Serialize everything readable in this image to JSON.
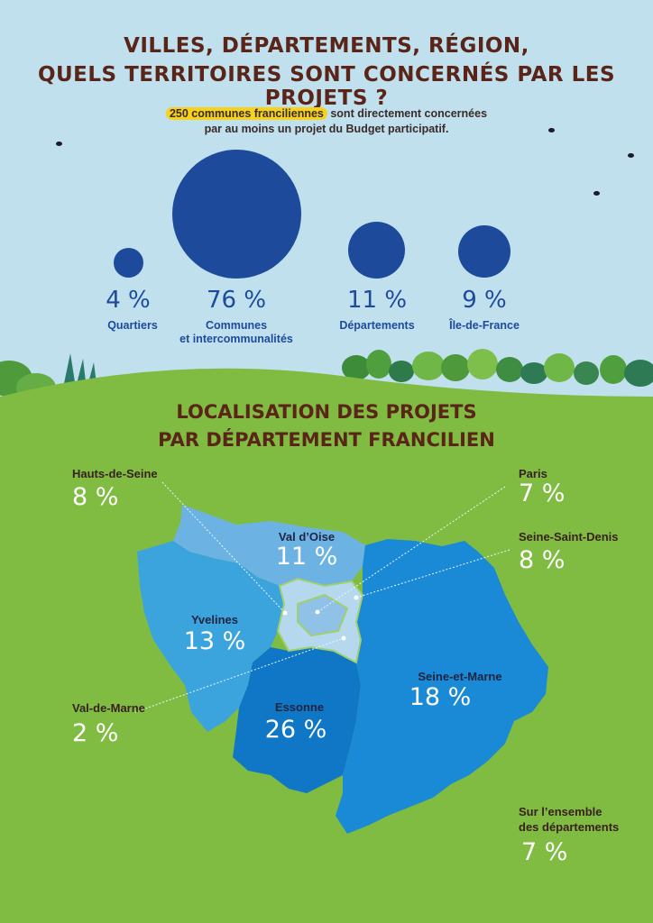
{
  "header": {
    "title_line1": "VILLES, DÉPARTEMENTS, RÉGION,",
    "title_line2": "QUELS TERRITOIRES SONT CONCERNÉS PAR LES PROJETS ?",
    "intro_highlight": "250 communes franciliennes",
    "intro_rest": " sont directement concernées",
    "intro_line2": "par au moins un projet du Budget participatif."
  },
  "territories": [
    {
      "percent": "4 %",
      "label": "Quartiers",
      "value": 4
    },
    {
      "percent": "76 %",
      "label": "Communes",
      "label2": "et intercommunalités",
      "value": 76
    },
    {
      "percent": "11 %",
      "label": "Départements",
      "value": 11
    },
    {
      "percent": "9 %",
      "label": "Île-de-France",
      "value": 9
    }
  ],
  "localisation": {
    "title_line1": "LOCALISATION DES PROJETS",
    "title_line2": "PAR DÉPARTEMENT FRANCILIEN"
  },
  "departments": {
    "hauts_de_seine": {
      "label": "Hauts-de-Seine",
      "percent": "8 %"
    },
    "paris": {
      "label": "Paris",
      "percent": "7 %"
    },
    "seine_saint_denis": {
      "label": "Seine-Saint-Denis",
      "percent": "8 %"
    },
    "val_de_marne": {
      "label": "Val-de-Marne",
      "percent": "2 %"
    },
    "val_d_oise": {
      "label": "Val d’Oise",
      "percent": "11 %"
    },
    "yvelines": {
      "label": "Yvelines",
      "percent": "13 %"
    },
    "essonne": {
      "label": "Essonne",
      "percent": "26 %"
    },
    "seine_et_marne": {
      "label": "Seine-et-Marne",
      "percent": "18 %"
    },
    "ensemble": {
      "label": "Sur l’ensemble",
      "label2": "des départements",
      "percent": "7 %"
    }
  },
  "colors": {
    "sky": "#bfe0ec",
    "grass": "#7fbc41",
    "navy": "#1e4a9c",
    "title_brown": "#5a2418",
    "highlight": "#f6d21b",
    "val_d_oise": "#6cb3e4",
    "yvelines": "#3ca4dd",
    "essonne": "#0f77c6",
    "seine_et_marne": "#1a8ad6",
    "petite_couronne": "#b5d8ee"
  }
}
